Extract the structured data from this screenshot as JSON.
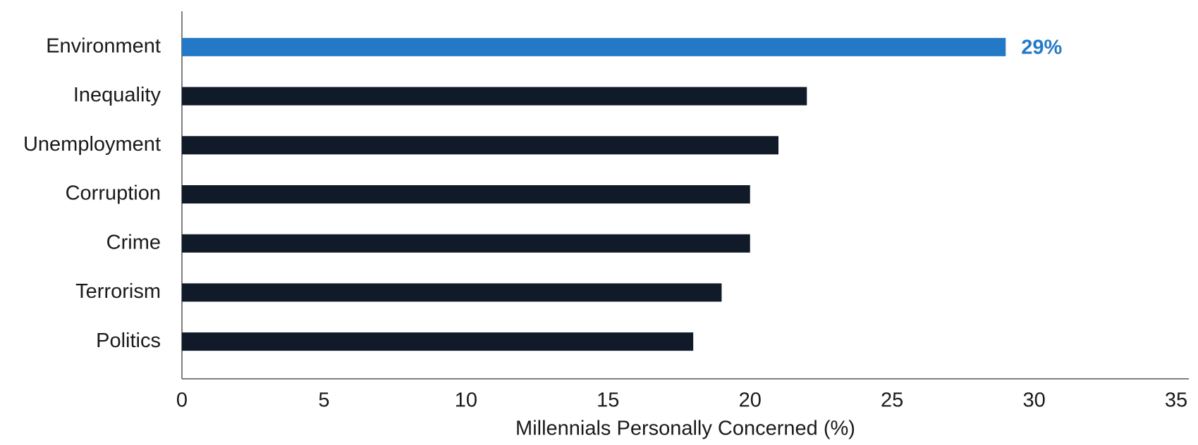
{
  "chart_data": {
    "type": "bar",
    "orientation": "horizontal",
    "x_label": "Millennials Personally Concerned (%)",
    "categories": [
      "Environment",
      "Inequality",
      "Unemployment",
      "Corruption",
      "Crime",
      "Terrorism",
      "Politics"
    ],
    "values": [
      29,
      22,
      21,
      20,
      20,
      19,
      18
    ],
    "value_labels": [
      "29%",
      null,
      null,
      null,
      null,
      null,
      null
    ],
    "colors": [
      "#2479c6",
      "#101a28",
      "#101a28",
      "#101a28",
      "#101a28",
      "#101a28",
      "#101a28"
    ],
    "xlim": [
      0,
      35
    ],
    "xticks": [
      0,
      5,
      10,
      15,
      20,
      25,
      30,
      35
    ],
    "grid": false
  }
}
